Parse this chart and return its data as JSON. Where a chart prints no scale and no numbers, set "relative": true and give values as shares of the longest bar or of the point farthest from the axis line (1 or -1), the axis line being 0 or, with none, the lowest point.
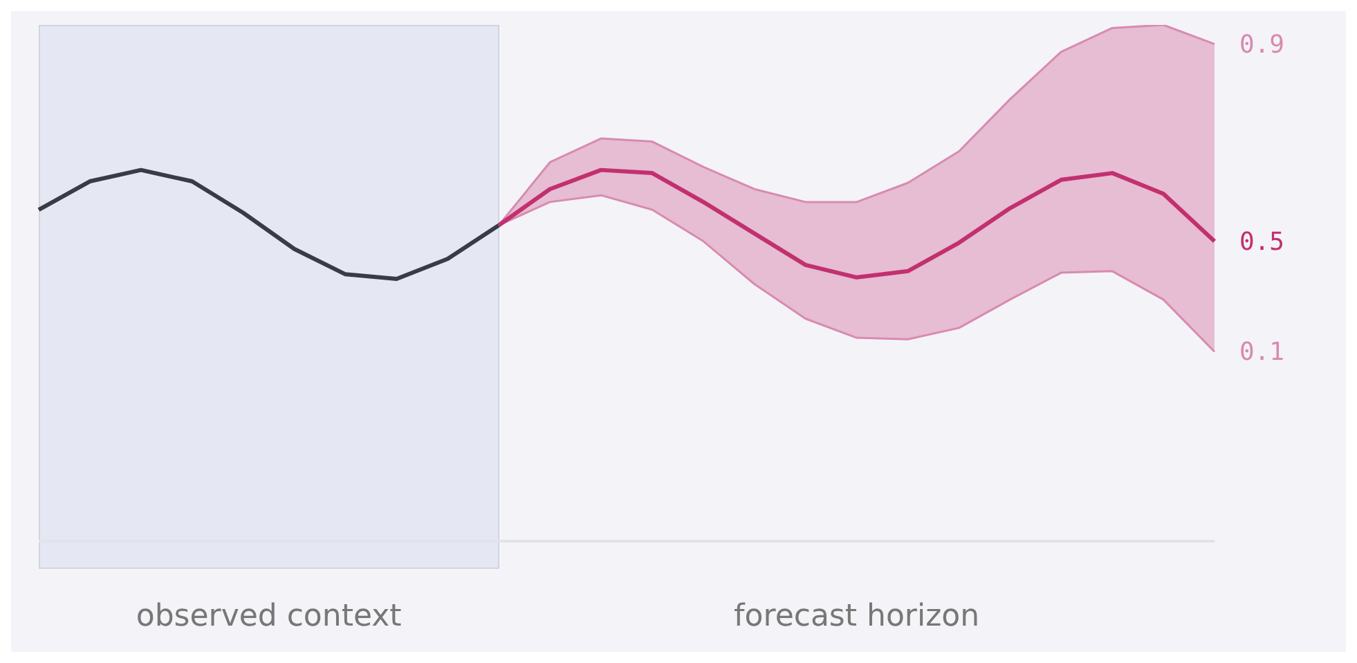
{
  "chart_data": {
    "type": "line",
    "relative": true,
    "categories": [
      null,
      null,
      null,
      null,
      null,
      null,
      null,
      null,
      null,
      null,
      null,
      null,
      null,
      null,
      null,
      null,
      null,
      null,
      null,
      null,
      null,
      null,
      null,
      null
    ],
    "series": [
      {
        "color": "#3b3b45",
        "values": [
          0.642,
          0.697,
          0.719,
          0.697,
          0.636,
          0.566,
          0.517,
          0.508,
          0.547,
          0.612,
          null,
          null,
          null,
          null,
          null,
          null,
          null,
          null,
          null,
          null,
          null,
          null,
          null,
          null
        ]
      },
      {
        "name": "0.9",
        "color": "#d98ab0",
        "values": [
          null,
          null,
          null,
          null,
          null,
          null,
          null,
          null,
          null,
          0.612,
          0.734,
          0.78,
          0.774,
          0.725,
          0.682,
          0.657,
          0.657,
          0.694,
          0.755,
          0.856,
          0.948,
          0.994,
          1,
          0.963
        ]
      },
      {
        "name": "0.1",
        "color": "#d98ab0",
        "values": [
          null,
          null,
          null,
          null,
          null,
          null,
          null,
          null,
          null,
          0.612,
          0.657,
          0.67,
          0.642,
          0.581,
          0.498,
          0.431,
          0.394,
          0.391,
          0.413,
          0.468,
          0.52,
          0.523,
          0.468,
          0.367
        ]
      },
      {
        "name": "0.5",
        "color": "#c2306f",
        "values": [
          null,
          null,
          null,
          null,
          null,
          null,
          null,
          null,
          null,
          0.612,
          0.682,
          0.719,
          0.713,
          0.657,
          0.596,
          0.535,
          0.511,
          0.523,
          0.578,
          0.645,
          0.7,
          0.713,
          0.673,
          0.581
        ],
        "lower": [
          null,
          null,
          null,
          null,
          null,
          null,
          null,
          null,
          null,
          0.612,
          0.657,
          0.67,
          0.642,
          0.581,
          0.498,
          0.431,
          0.394,
          0.391,
          0.413,
          0.468,
          0.52,
          0.523,
          0.468,
          0.367
        ],
        "upper": [
          null,
          null,
          null,
          null,
          null,
          null,
          null,
          null,
          null,
          0.612,
          0.734,
          0.78,
          0.774,
          0.725,
          0.682,
          0.657,
          0.657,
          0.694,
          0.755,
          0.856,
          0.948,
          0.994,
          1,
          0.963
        ]
      }
    ],
    "annotations": [
      "observed context",
      "forecast horizon"
    ]
  }
}
